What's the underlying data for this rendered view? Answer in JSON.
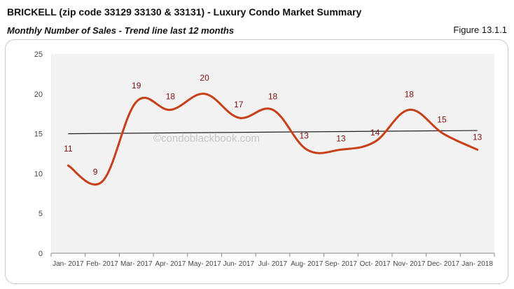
{
  "header": {
    "title": "BRICKELL (zip code 33129 33130 & 33131) - Luxury Condo Market Summary",
    "subtitle": "Monthly Number of Sales - Trend line last 12 months",
    "figure": "Figure 13.1.1"
  },
  "watermark": "©condoblackbook.com",
  "colors": {
    "series": "#c8401a",
    "trend": "#222222",
    "plot_bg": "#f2f2f2",
    "label": "#7a1010"
  },
  "chart_data": {
    "type": "line",
    "title": "Monthly Number of Sales - Trend line last 12 months",
    "xlabel": "",
    "ylabel": "",
    "ylim": [
      0,
      25
    ],
    "yticks": [
      0,
      5,
      10,
      15,
      20,
      25
    ],
    "grid": false,
    "legend": null,
    "categories": [
      "Jan- 2017",
      "Feb- 2017",
      "Mar- 2017",
      "Apr- 2017",
      "May- 2017",
      "Jun- 2017",
      "Jul- 2017",
      "Aug- 2017",
      "Sep- 2017",
      "Oct- 2017",
      "Nov- 2017",
      "Dec- 2017",
      "Jan- 2018"
    ],
    "series": [
      {
        "name": "Monthly Number of Sales",
        "values": [
          11,
          9,
          19,
          18,
          20,
          17,
          18,
          13,
          13,
          14,
          18,
          15,
          13
        ],
        "smooth": true
      },
      {
        "name": "Trend line",
        "values": [
          15.0,
          15.03,
          15.07,
          15.1,
          15.13,
          15.17,
          15.2,
          15.23,
          15.27,
          15.3,
          15.33,
          15.37,
          15.4
        ],
        "type": "linear-trend"
      }
    ]
  }
}
